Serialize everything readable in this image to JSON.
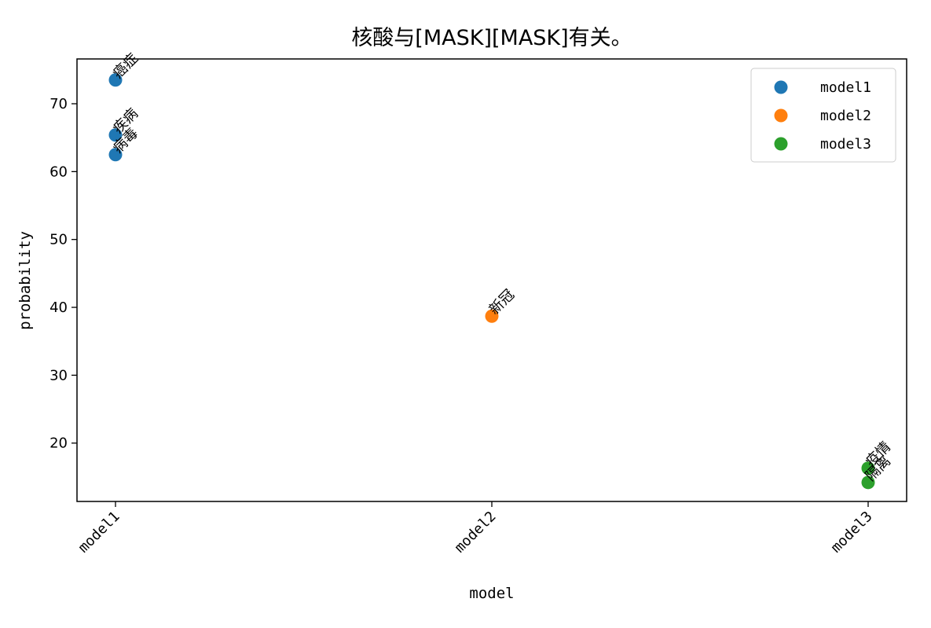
{
  "chart_data": {
    "type": "scatter",
    "title": "核酸与[MASK][MASK]有关。",
    "xlabel": "model",
    "ylabel": "probability",
    "categories": [
      "model1",
      "model2",
      "model3"
    ],
    "ylim": [
      11.4,
      76.6
    ],
    "yticks": [
      20,
      30,
      40,
      50,
      60,
      70
    ],
    "grid": false,
    "legend_position": "top-right",
    "series": [
      {
        "name": "model1",
        "color": "#1f77b4",
        "points": [
          {
            "x": "model1",
            "y": 73.5,
            "label": "癌症"
          },
          {
            "x": "model1",
            "y": 65.4,
            "label": "疾病"
          },
          {
            "x": "model1",
            "y": 62.5,
            "label": "病毒"
          }
        ]
      },
      {
        "name": "model2",
        "color": "#ff7f0e",
        "points": [
          {
            "x": "model2",
            "y": 38.7,
            "label": "新冠"
          }
        ]
      },
      {
        "name": "model3",
        "color": "#2ca02c",
        "points": [
          {
            "x": "model3",
            "y": 16.3,
            "label": "疫情"
          },
          {
            "x": "model3",
            "y": 14.2,
            "label": "隔离"
          }
        ]
      }
    ]
  }
}
